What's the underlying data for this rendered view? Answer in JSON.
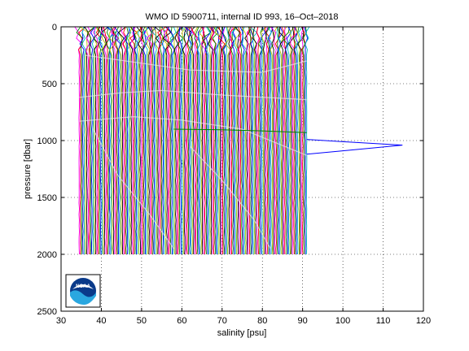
{
  "chart_data": {
    "type": "line",
    "title": "WMO ID 5900711, internal ID 993, 16–Oct–2018",
    "xlabel": "salinity [psu]",
    "ylabel": "pressure [dbar]",
    "xlim": [
      30,
      120
    ],
    "ylim": [
      2500,
      0
    ],
    "y_reversed": true,
    "grid": true,
    "xticks": [
      30,
      40,
      50,
      60,
      70,
      80,
      90,
      100,
      110,
      120
    ],
    "yticks": [
      0,
      500,
      1000,
      1500,
      2000,
      2500
    ],
    "profiles": {
      "description_series": "dense band of salinity profiles, each offset progressively",
      "x_start": 34.5,
      "x_end": 91.0,
      "count": 180,
      "pressure_top": 0,
      "pressure_bottom": 2000
    },
    "series": [
      {
        "color": "#0000ff",
        "x": [
          91.0,
          100.0,
          114.8,
          100.0,
          91.0
        ],
        "y": [
          990,
          1010,
          1040,
          1090,
          1120
        ]
      },
      {
        "color": "#008000",
        "x": [
          58.0,
          70.0,
          80.0,
          91.0
        ],
        "y": [
          900,
          905,
          915,
          930
        ]
      }
    ],
    "colors": [
      "#ff00ff",
      "#ff0000",
      "#008000",
      "#0000ff",
      "#00bfbf",
      "#bfbf00",
      "#000000"
    ]
  },
  "logo": {
    "text": "NOAA"
  }
}
